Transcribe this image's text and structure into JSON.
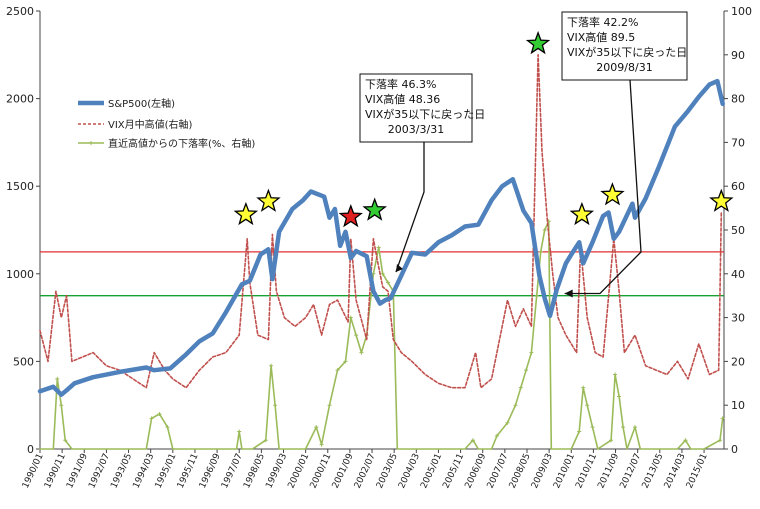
{
  "chart_data": {
    "type": "line",
    "title": "",
    "xlabel": "",
    "ylabel_left": "",
    "ylabel_right": "",
    "ylim_left": [
      0,
      2500
    ],
    "ylim_right": [
      0,
      100
    ],
    "y_left_ticks": [
      "0",
      "500",
      "1000",
      "1500",
      "2000",
      "2500"
    ],
    "y_right_ticks": [
      "0",
      "10",
      "20",
      "30",
      "40",
      "50",
      "60",
      "70",
      "80",
      "90",
      "100"
    ],
    "x_ticks": [
      "1990/01",
      "1990/11",
      "1991/09",
      "1992/07",
      "1993/05",
      "1994/03",
      "1995/01",
      "1995/11",
      "1996/09",
      "1997/07",
      "1998/05",
      "1999/03",
      "2000/01",
      "2000/11",
      "2001/09",
      "2002/07",
      "2003/05",
      "2004/03",
      "2005/01",
      "2005/11",
      "2006/09",
      "2007/07",
      "2008/05",
      "2009/03",
      "2010/01",
      "2010/11",
      "2011/09",
      "2012/07",
      "2013/05",
      "2014/03",
      "2015/01"
    ],
    "x_start": 1990.0,
    "x_end": 2015.75,
    "legend": {
      "position": "top-left"
    },
    "grid": false,
    "series": [
      {
        "name": "S&P500(左軸)",
        "axis": "left",
        "style": "solid-thick",
        "color": "#4F81BD",
        "points": [
          [
            1990.0,
            330
          ],
          [
            1990.5,
            355
          ],
          [
            1990.8,
            310
          ],
          [
            1991.0,
            335
          ],
          [
            1991.3,
            375
          ],
          [
            1992.0,
            410
          ],
          [
            1993.0,
            440
          ],
          [
            1994.0,
            465
          ],
          [
            1994.3,
            450
          ],
          [
            1994.9,
            460
          ],
          [
            1995.5,
            540
          ],
          [
            1996.0,
            615
          ],
          [
            1996.5,
            660
          ],
          [
            1997.0,
            780
          ],
          [
            1997.6,
            940
          ],
          [
            1997.9,
            960
          ],
          [
            1998.3,
            1110
          ],
          [
            1998.6,
            1140
          ],
          [
            1998.75,
            970
          ],
          [
            1999.0,
            1240
          ],
          [
            1999.5,
            1370
          ],
          [
            1999.9,
            1420
          ],
          [
            2000.2,
            1470
          ],
          [
            2000.7,
            1440
          ],
          [
            2000.9,
            1320
          ],
          [
            2001.1,
            1370
          ],
          [
            2001.3,
            1160
          ],
          [
            2001.5,
            1240
          ],
          [
            2001.7,
            1090
          ],
          [
            2001.9,
            1130
          ],
          [
            2002.3,
            1100
          ],
          [
            2002.55,
            900
          ],
          [
            2002.8,
            830
          ],
          [
            2003.0,
            850
          ],
          [
            2003.2,
            860
          ],
          [
            2003.6,
            990
          ],
          [
            2004.0,
            1120
          ],
          [
            2004.5,
            1110
          ],
          [
            2005.0,
            1180
          ],
          [
            2005.5,
            1220
          ],
          [
            2006.0,
            1270
          ],
          [
            2006.5,
            1280
          ],
          [
            2007.0,
            1420
          ],
          [
            2007.4,
            1500
          ],
          [
            2007.8,
            1540
          ],
          [
            2008.2,
            1360
          ],
          [
            2008.5,
            1290
          ],
          [
            2008.8,
            990
          ],
          [
            2009.0,
            860
          ],
          [
            2009.2,
            760
          ],
          [
            2009.45,
            910
          ],
          [
            2009.8,
            1060
          ],
          [
            2010.0,
            1110
          ],
          [
            2010.3,
            1180
          ],
          [
            2010.45,
            1060
          ],
          [
            2010.8,
            1180
          ],
          [
            2011.2,
            1330
          ],
          [
            2011.4,
            1350
          ],
          [
            2011.6,
            1200
          ],
          [
            2011.8,
            1240
          ],
          [
            2012.3,
            1400
          ],
          [
            2012.4,
            1320
          ],
          [
            2012.8,
            1430
          ],
          [
            2013.3,
            1610
          ],
          [
            2013.9,
            1840
          ],
          [
            2014.4,
            1930
          ],
          [
            2014.8,
            2010
          ],
          [
            2015.2,
            2080
          ],
          [
            2015.5,
            2100
          ],
          [
            2015.7,
            1970
          ]
        ]
      },
      {
        "name": "VIX月中高値(右軸)",
        "axis": "right",
        "style": "dashed",
        "color": "#C0504D",
        "points": [
          [
            1990.0,
            27
          ],
          [
            1990.3,
            20
          ],
          [
            1990.6,
            36
          ],
          [
            1990.8,
            30
          ],
          [
            1991.0,
            35
          ],
          [
            1991.2,
            20
          ],
          [
            1991.6,
            21
          ],
          [
            1992.0,
            22
          ],
          [
            1992.5,
            19
          ],
          [
            1993.0,
            18
          ],
          [
            1993.5,
            16
          ],
          [
            1994.0,
            14
          ],
          [
            1994.3,
            22
          ],
          [
            1994.7,
            18
          ],
          [
            1995.0,
            16
          ],
          [
            1995.5,
            14
          ],
          [
            1996.0,
            18
          ],
          [
            1996.5,
            21
          ],
          [
            1997.0,
            22
          ],
          [
            1997.5,
            26
          ],
          [
            1997.8,
            48
          ],
          [
            1997.9,
            38
          ],
          [
            1998.2,
            26
          ],
          [
            1998.6,
            25
          ],
          [
            1998.75,
            49
          ],
          [
            1998.9,
            36
          ],
          [
            1999.2,
            30
          ],
          [
            1999.6,
            28
          ],
          [
            2000.0,
            30
          ],
          [
            2000.3,
            33
          ],
          [
            2000.6,
            26
          ],
          [
            2000.9,
            33
          ],
          [
            2001.2,
            34
          ],
          [
            2001.6,
            29
          ],
          [
            2001.7,
            48
          ],
          [
            2001.9,
            34
          ],
          [
            2002.3,
            25
          ],
          [
            2002.55,
            48
          ],
          [
            2002.7,
            43
          ],
          [
            2002.9,
            37
          ],
          [
            2003.1,
            36
          ],
          [
            2003.3,
            25
          ],
          [
            2003.6,
            22
          ],
          [
            2004.0,
            20
          ],
          [
            2004.5,
            17
          ],
          [
            2005.0,
            15
          ],
          [
            2005.5,
            14
          ],
          [
            2006.0,
            14
          ],
          [
            2006.4,
            22
          ],
          [
            2006.6,
            14
          ],
          [
            2007.0,
            16
          ],
          [
            2007.2,
            22
          ],
          [
            2007.6,
            34
          ],
          [
            2007.9,
            28
          ],
          [
            2008.2,
            32
          ],
          [
            2008.5,
            28
          ],
          [
            2008.75,
            90
          ],
          [
            2008.9,
            68
          ],
          [
            2009.1,
            52
          ],
          [
            2009.3,
            40
          ],
          [
            2009.5,
            30
          ],
          [
            2009.8,
            26
          ],
          [
            2010.2,
            22
          ],
          [
            2010.35,
            46
          ],
          [
            2010.6,
            30
          ],
          [
            2010.9,
            22
          ],
          [
            2011.2,
            21
          ],
          [
            2011.6,
            48
          ],
          [
            2011.8,
            36
          ],
          [
            2012.0,
            22
          ],
          [
            2012.4,
            26
          ],
          [
            2012.8,
            19
          ],
          [
            2013.2,
            18
          ],
          [
            2013.6,
            17
          ],
          [
            2014.0,
            20
          ],
          [
            2014.4,
            16
          ],
          [
            2014.8,
            24
          ],
          [
            2015.2,
            17
          ],
          [
            2015.55,
            18
          ],
          [
            2015.65,
            54
          ]
        ]
      },
      {
        "name": "直近高値からの下落率(%、右軸)",
        "axis": "right",
        "style": "solid-markers",
        "color": "#9BBB59",
        "points": [
          [
            1990.0,
            0
          ],
          [
            1990.5,
            0
          ],
          [
            1990.65,
            16
          ],
          [
            1990.8,
            10
          ],
          [
            1990.95,
            2
          ],
          [
            1991.2,
            0
          ],
          [
            1993.0,
            0
          ],
          [
            1994.0,
            0
          ],
          [
            1994.2,
            7
          ],
          [
            1994.5,
            8
          ],
          [
            1994.8,
            5
          ],
          [
            1995.0,
            0
          ],
          [
            1997.0,
            0
          ],
          [
            1997.4,
            0
          ],
          [
            1997.5,
            4
          ],
          [
            1997.6,
            0
          ],
          [
            1998.0,
            0
          ],
          [
            1998.5,
            2
          ],
          [
            1998.7,
            19
          ],
          [
            1998.85,
            10
          ],
          [
            1999.0,
            0
          ],
          [
            2000.0,
            0
          ],
          [
            2000.4,
            5
          ],
          [
            2000.6,
            1
          ],
          [
            2000.9,
            10
          ],
          [
            2001.2,
            18
          ],
          [
            2001.5,
            20
          ],
          [
            2001.7,
            30
          ],
          [
            2001.9,
            26
          ],
          [
            2002.1,
            22
          ],
          [
            2002.3,
            26
          ],
          [
            2002.55,
            40
          ],
          [
            2002.75,
            46
          ],
          [
            2002.9,
            40
          ],
          [
            2003.1,
            38
          ],
          [
            2003.3,
            36
          ],
          [
            2003.45,
            0
          ],
          [
            2004.0,
            0
          ],
          [
            2005.0,
            0
          ],
          [
            2006.0,
            0
          ],
          [
            2006.3,
            2
          ],
          [
            2006.5,
            0
          ],
          [
            2007.0,
            0
          ],
          [
            2007.2,
            3
          ],
          [
            2007.6,
            6
          ],
          [
            2007.9,
            10
          ],
          [
            2008.1,
            14
          ],
          [
            2008.3,
            18
          ],
          [
            2008.5,
            22
          ],
          [
            2008.7,
            35
          ],
          [
            2008.85,
            45
          ],
          [
            2009.0,
            50
          ],
          [
            2009.15,
            52
          ],
          [
            2009.25,
            0
          ],
          [
            2010.0,
            0
          ],
          [
            2010.3,
            4
          ],
          [
            2010.45,
            14
          ],
          [
            2010.6,
            10
          ],
          [
            2010.8,
            5
          ],
          [
            2011.0,
            0
          ],
          [
            2011.5,
            2
          ],
          [
            2011.65,
            17
          ],
          [
            2011.8,
            12
          ],
          [
            2011.95,
            5
          ],
          [
            2012.1,
            0
          ],
          [
            2012.4,
            5
          ],
          [
            2012.6,
            0
          ],
          [
            2013.0,
            0
          ],
          [
            2014.0,
            0
          ],
          [
            2014.3,
            2
          ],
          [
            2014.5,
            0
          ],
          [
            2015.0,
            0
          ],
          [
            2015.6,
            2
          ],
          [
            2015.7,
            7
          ]
        ]
      }
    ],
    "reference_lines": [
      {
        "axis": "right",
        "value": 45,
        "color": "#E03030"
      },
      {
        "axis": "right",
        "value": 35,
        "color": "#18A030"
      }
    ],
    "stars": [
      {
        "x": 1997.75,
        "y_right": 53.5,
        "color": "#FFFF33"
      },
      {
        "x": 1998.6,
        "y_right": 56.5,
        "color": "#FFFF33"
      },
      {
        "x": 2001.7,
        "y_right": 53,
        "color": "#E02020"
      },
      {
        "x": 2002.6,
        "y_right": 54.5,
        "color": "#33CC33"
      },
      {
        "x": 2008.75,
        "y_right": 92.5,
        "color": "#33CC33"
      },
      {
        "x": 2010.4,
        "y_right": 53.5,
        "color": "#FFFF33"
      },
      {
        "x": 2011.55,
        "y_right": 58,
        "color": "#FFFF33"
      },
      {
        "x": 2015.65,
        "y_right": 56.5,
        "color": "#FFFF33"
      }
    ],
    "annotations": [
      {
        "lines": [
          "下落率  46.3%",
          "VIX高値  48.36",
          "VIXが35以下に戻った日",
          "2003/3/31"
        ],
        "target": {
          "x": 2003.25,
          "y_right": 39.5
        }
      },
      {
        "lines": [
          "下落率  42.2%",
          "VIX高値  89.5",
          "VIXが35以下に戻った日",
          "2009/8/31"
        ],
        "target": {
          "x": 2009.45,
          "y_right": 35.5
        }
      }
    ]
  }
}
